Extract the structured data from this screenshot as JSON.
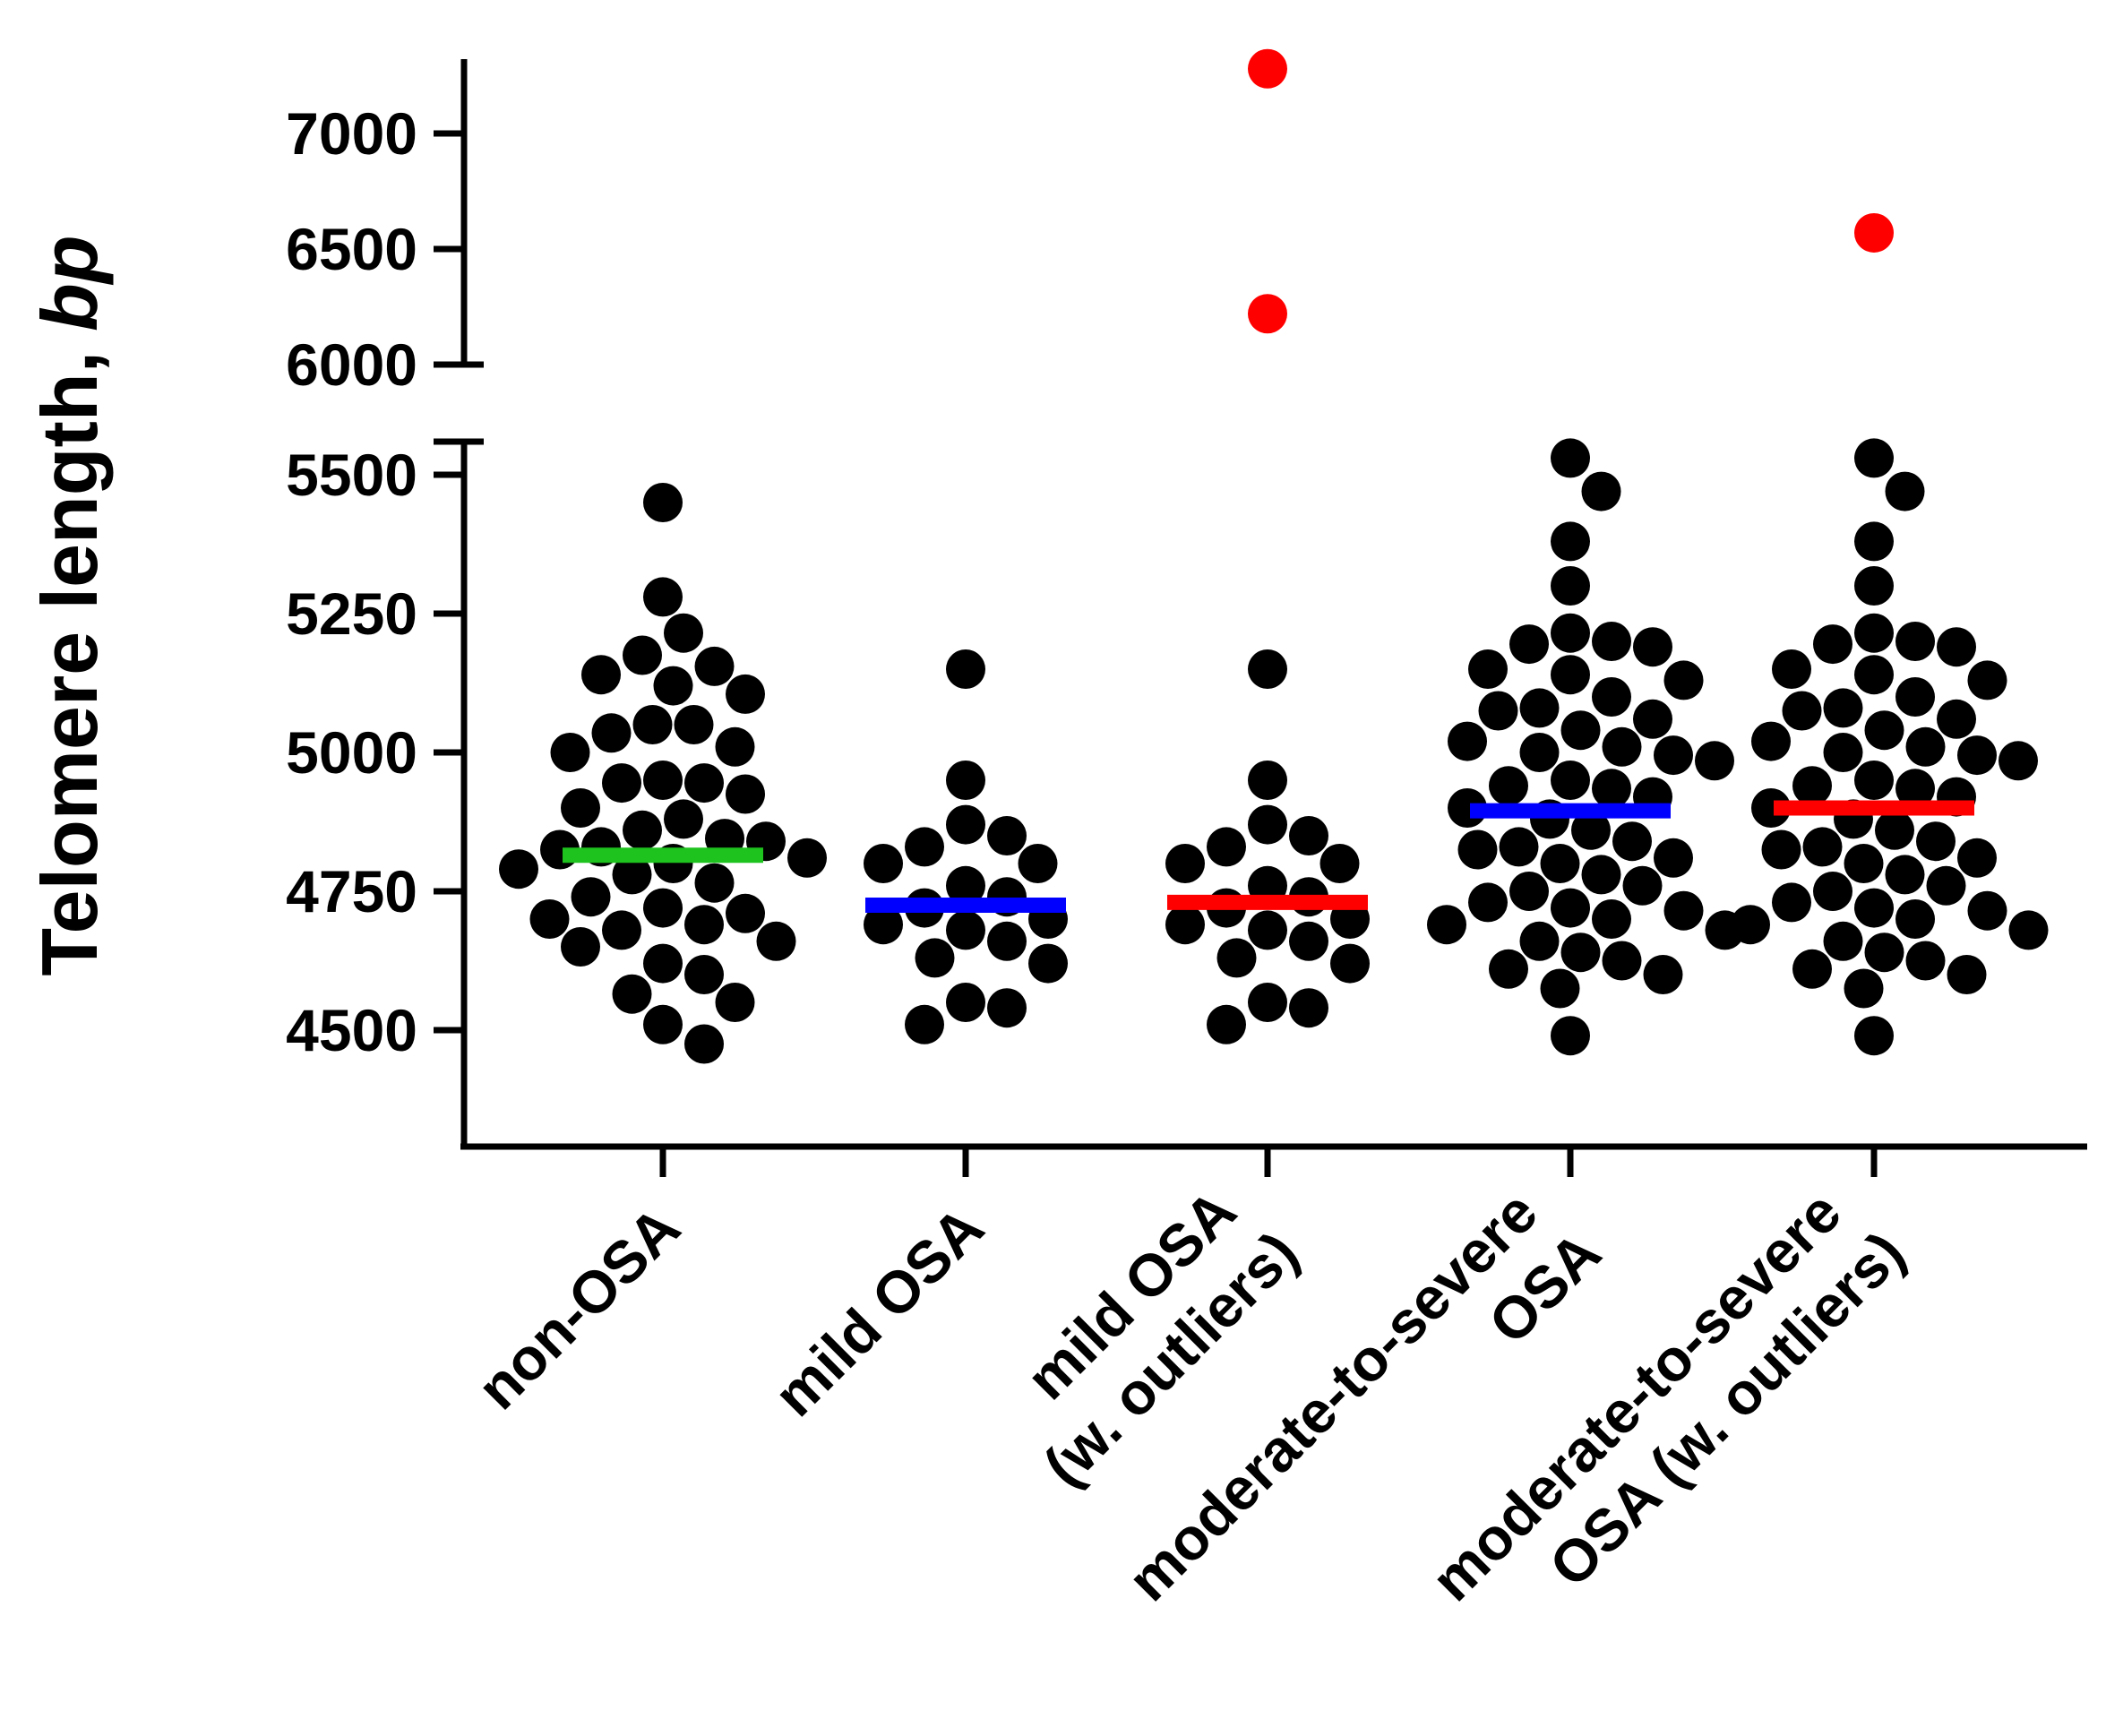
{
  "chart_data": {
    "type": "scatter",
    "subtype": "dot-plot with mean lines, broken y-axis",
    "title": "",
    "ylabel": "Telomere length,",
    "ylabel_unit": "bp",
    "xlabel": "",
    "y_segments": [
      {
        "range": [
          4300,
          5560
        ],
        "ticks": [
          4500,
          4750,
          5000,
          5250,
          5500
        ]
      },
      {
        "range": [
          6000,
          7300
        ],
        "ticks": [
          6000,
          6500,
          7000
        ]
      }
    ],
    "tick_labels": {
      "t4500": "4500",
      "t4750": "4750",
      "t5000": "5000",
      "t5250": "5250",
      "t5500": "5500",
      "t6000": "6000",
      "t6500": "6500",
      "t7000": "7000"
    },
    "categories": [
      {
        "lines": [
          "non-OSA"
        ]
      },
      {
        "lines": [
          "mild OSA"
        ]
      },
      {
        "lines": [
          "mild OSA",
          "(w. outliers)"
        ]
      },
      {
        "lines": [
          "moderate-to-severe",
          "OSA"
        ]
      },
      {
        "lines": [
          "moderate-to-severe",
          "OSA (w. outliers)"
        ]
      }
    ],
    "colors": {
      "points": "#000000",
      "outliers": "#ff0000",
      "mean_green": "#1ec31e",
      "mean_blue": "#0000ff",
      "mean_red": "#ff0000"
    },
    "series": [
      {
        "name": "non-OSA",
        "mean": 4815,
        "mean_color": "#1ec31e",
        "values": [
          5450,
          5280,
          5215,
          5175,
          5155,
          5140,
          5120,
          5105,
          5050,
          5050,
          5035,
          5010,
          5000,
          4950,
          4945,
          4945,
          4925,
          4900,
          4880,
          4860,
          4845,
          4840,
          4830,
          4825,
          4810,
          4800,
          4790,
          4780,
          4765,
          4740,
          4720,
          4710,
          4700,
          4690,
          4680,
          4660,
          4650,
          4620,
          4600,
          4565,
          4550,
          4510,
          4475
        ],
        "outliers": []
      },
      {
        "name": "mild OSA",
        "mean": 4725,
        "mean_color": "#0000ff",
        "values": [
          5150,
          4950,
          4870,
          4850,
          4830,
          4800,
          4800,
          4760,
          4740,
          4720,
          4700,
          4690,
          4680,
          4660,
          4630,
          4620,
          4550,
          4540,
          4510
        ],
        "outliers": []
      },
      {
        "name": "mild OSA (w. outliers)",
        "mean": 4730,
        "mean_color": "#ff0000",
        "values": [
          5150,
          4950,
          4870,
          4850,
          4830,
          4800,
          4800,
          4760,
          4740,
          4720,
          4700,
          4690,
          4680,
          4660,
          4630,
          4620,
          4550,
          4540,
          4510
        ],
        "outliers": [
          7280,
          6220
        ]
      },
      {
        "name": "moderate-to-severe OSA",
        "mean": 4895,
        "mean_color": "#0000ff",
        "values": [
          5530,
          5470,
          5380,
          5300,
          5215,
          5200,
          5195,
          5190,
          5150,
          5140,
          5130,
          5100,
          5080,
          5075,
          5060,
          5040,
          5020,
          5010,
          5000,
          4995,
          4985,
          4950,
          4940,
          4935,
          4920,
          4900,
          4880,
          4860,
          4840,
          4830,
          4825,
          4810,
          4800,
          4780,
          4760,
          4750,
          4730,
          4720,
          4715,
          4700,
          4690,
          4680,
          4660,
          4640,
          4625,
          4610,
          4600,
          4575,
          4490
        ],
        "outliers": []
      },
      {
        "name": "moderate-to-severe OSA (w. outliers)",
        "mean": 4900,
        "mean_color": "#ff0000",
        "values": [
          5530,
          5470,
          5380,
          5300,
          5215,
          5200,
          5195,
          5190,
          5150,
          5140,
          5130,
          5100,
          5080,
          5075,
          5060,
          5040,
          5020,
          5010,
          5000,
          4995,
          4985,
          4950,
          4940,
          4935,
          4920,
          4900,
          4880,
          4860,
          4840,
          4830,
          4825,
          4810,
          4800,
          4780,
          4760,
          4750,
          4730,
          4720,
          4715,
          4700,
          4690,
          4680,
          4660,
          4640,
          4625,
          4610,
          4600,
          4575,
          4490
        ],
        "outliers": [
          6570
        ]
      }
    ]
  }
}
